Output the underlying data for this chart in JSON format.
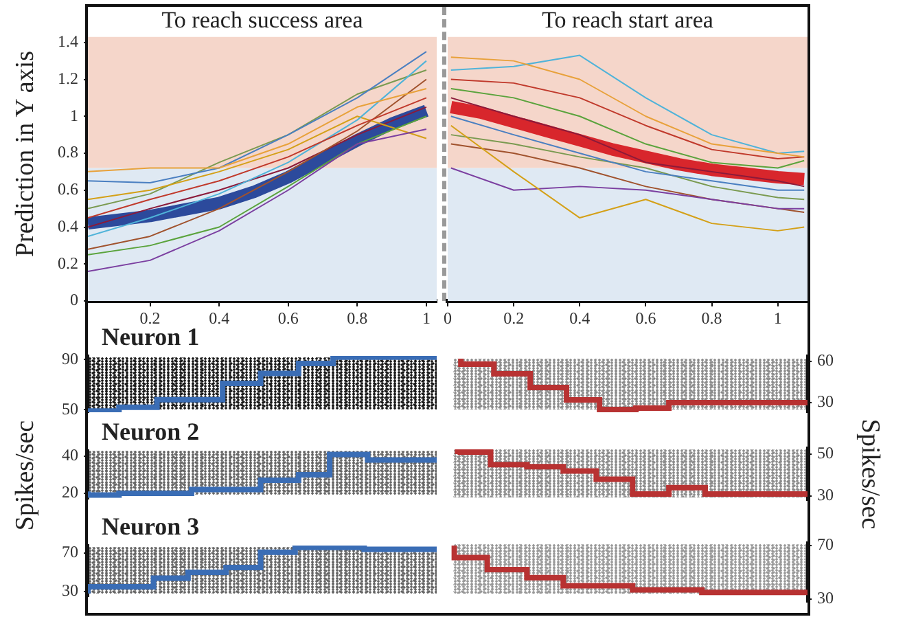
{
  "chart_data": [
    {
      "type": "line",
      "title": "To reach success area",
      "ylabel": "Prediction in Y axis",
      "xlim": [
        0.02,
        1.03
      ],
      "xticks": [
        0.2,
        0.4,
        0.6,
        0.8,
        1
      ],
      "ylim": [
        0,
        1.6
      ],
      "yticks": [
        0,
        0.2,
        0.4,
        0.6,
        0.8,
        1,
        1.2,
        1.4
      ],
      "grid": false,
      "bands": [
        {
          "axis": "y",
          "from": 0,
          "to": 0.72,
          "color": "#dfe9f3"
        },
        {
          "axis": "y",
          "from": 0.72,
          "to": 1.43,
          "color": "#f5d6ca"
        }
      ],
      "x": [
        0.02,
        0.2,
        0.4,
        0.6,
        0.8,
        1.0
      ],
      "series": [
        {
          "color": "#7b3fa0",
          "values": [
            0.16,
            0.22,
            0.38,
            0.6,
            0.85,
            0.93
          ]
        },
        {
          "color": "#e8a13a",
          "values": [
            0.7,
            0.72,
            0.72,
            0.85,
            1.05,
            1.15
          ]
        },
        {
          "color": "#4a7fc1",
          "values": [
            0.65,
            0.64,
            0.72,
            0.9,
            1.1,
            1.35
          ]
        },
        {
          "color": "#5aa33c",
          "values": [
            0.25,
            0.3,
            0.4,
            0.62,
            0.85,
            1.0
          ]
        },
        {
          "color": "#c0392b",
          "values": [
            0.45,
            0.55,
            0.65,
            0.78,
            0.95,
            1.1
          ]
        },
        {
          "color": "#4fb3d9",
          "values": [
            0.35,
            0.45,
            0.58,
            0.75,
            0.98,
            1.3
          ]
        },
        {
          "color": "#d4a017",
          "values": [
            0.55,
            0.6,
            0.7,
            0.82,
            1.0,
            0.88
          ]
        },
        {
          "color": "#a0522d",
          "values": [
            0.28,
            0.35,
            0.5,
            0.7,
            0.92,
            1.2
          ]
        },
        {
          "color": "#7a9a50",
          "values": [
            0.5,
            0.58,
            0.75,
            0.9,
            1.12,
            1.25
          ]
        },
        {
          "color": "#8b1a3a",
          "values": [
            0.4,
            0.5,
            0.6,
            0.72,
            0.9,
            1.05
          ]
        },
        {
          "color": "#2c4a9c",
          "x": [
            0.02,
            0.2,
            0.4,
            0.5,
            0.6,
            0.7,
            0.8,
            0.9,
            1.0
          ],
          "values": [
            0.42,
            0.46,
            0.53,
            0.59,
            0.67,
            0.77,
            0.87,
            0.96,
            1.03
          ]
        }
      ]
    },
    {
      "type": "line",
      "title": "To reach start area",
      "xlim": [
        0,
        1.09
      ],
      "xticks": [
        0,
        0.2,
        0.4,
        0.6,
        0.8,
        1
      ],
      "ylim": [
        0,
        1.6
      ],
      "tick_labels": "x",
      "grid": false,
      "bands": [
        {
          "axis": "y",
          "from": 0,
          "to": 0.72,
          "color": "#dfe9f3"
        },
        {
          "axis": "y",
          "from": 0.72,
          "to": 1.43,
          "color": "#f5d6ca"
        }
      ],
      "x": [
        0.01,
        0.2,
        0.4,
        0.6,
        0.8,
        1.0,
        1.08
      ],
      "series": [
        {
          "color": "#e8a13a",
          "values": [
            1.32,
            1.3,
            1.2,
            1.0,
            0.85,
            0.8,
            0.78
          ]
        },
        {
          "color": "#4fb3d9",
          "values": [
            1.25,
            1.27,
            1.33,
            1.1,
            0.9,
            0.8,
            0.81
          ]
        },
        {
          "color": "#d4a017",
          "values": [
            0.95,
            0.7,
            0.45,
            0.55,
            0.42,
            0.38,
            0.4
          ]
        },
        {
          "color": "#7b3fa0",
          "values": [
            0.72,
            0.6,
            0.62,
            0.6,
            0.55,
            0.5,
            0.5
          ]
        },
        {
          "color": "#5aa33c",
          "values": [
            1.15,
            1.1,
            1.0,
            0.85,
            0.75,
            0.72,
            0.76
          ]
        },
        {
          "color": "#c0392b",
          "values": [
            1.2,
            1.18,
            1.1,
            0.95,
            0.82,
            0.77,
            0.78
          ]
        },
        {
          "color": "#4a7fc1",
          "values": [
            1.0,
            0.9,
            0.8,
            0.7,
            0.65,
            0.6,
            0.6
          ]
        },
        {
          "color": "#a0522d",
          "values": [
            0.85,
            0.8,
            0.72,
            0.62,
            0.55,
            0.5,
            0.48
          ]
        },
        {
          "color": "#8b1a3a",
          "values": [
            1.1,
            1.0,
            0.9,
            0.75,
            0.7,
            0.65,
            0.62
          ]
        },
        {
          "color": "#7a9a50",
          "values": [
            0.9,
            0.85,
            0.78,
            0.72,
            0.62,
            0.56,
            0.55
          ]
        },
        {
          "color": "#d8262c",
          "x": [
            0.01,
            0.1,
            0.2,
            0.3,
            0.4,
            0.5,
            0.6,
            0.7,
            0.8,
            0.9,
            1.0,
            1.08
          ],
          "values": [
            1.05,
            1.02,
            0.97,
            0.92,
            0.87,
            0.82,
            0.78,
            0.74,
            0.71,
            0.69,
            0.67,
            0.66
          ]
        }
      ]
    },
    {
      "type": "step",
      "title": "Neuron 1",
      "xlim": [
        0.02,
        1.03
      ],
      "ylim": [
        48,
        93
      ],
      "yticks": [
        50,
        90
      ],
      "tick_labels": "y",
      "grid": false,
      "x": [
        0.02,
        0.11,
        0.22,
        0.41,
        0.52,
        0.63,
        0.73,
        0.93,
        1.03
      ],
      "series": [
        {
          "color": "#3a6db5",
          "values": [
            50,
            49,
            52,
            58,
            71,
            79,
            87,
            92,
            92
          ]
        }
      ]
    },
    {
      "type": "step",
      "xlim": [
        0,
        1.09
      ],
      "ylim": [
        23,
        64
      ],
      "yticks": [
        30,
        60
      ],
      "tick_labels": "y",
      "grid": false,
      "x": [
        0.04,
        0.14,
        0.25,
        0.36,
        0.46,
        0.57,
        0.67,
        0.77,
        1.09
      ],
      "series": [
        {
          "color": "#b83232",
          "values": [
            62,
            58,
            51,
            41,
            32,
            25,
            26,
            30,
            30
          ]
        }
      ]
    },
    {
      "type": "step",
      "title": "Neuron 2",
      "ylabel": "Spikes/sec",
      "xlim": [
        0.02,
        1.03
      ],
      "ylim": [
        17,
        43
      ],
      "yticks": [
        20,
        40
      ],
      "tick_labels": "y",
      "grid": false,
      "x": [
        0.02,
        0.11,
        0.32,
        0.52,
        0.63,
        0.72,
        0.83,
        0.93,
        1.03
      ],
      "series": [
        {
          "color": "#3a6db5",
          "values": [
            21,
            19,
            20,
            22,
            27,
            30,
            41,
            38,
            38
          ]
        }
      ]
    },
    {
      "type": "step",
      "y2label": "Spikes/sec",
      "xlim": [
        0,
        1.09
      ],
      "ylim": [
        28,
        53
      ],
      "yticks": [
        30,
        50
      ],
      "tick_labels": "y",
      "grid": false,
      "x": [
        0.03,
        0.13,
        0.24,
        0.35,
        0.45,
        0.56,
        0.67,
        0.78,
        0.88,
        1.09
      ],
      "series": [
        {
          "color": "#b83232",
          "values": [
            50,
            51,
            45,
            44,
            42,
            38,
            31,
            34,
            31,
            31
          ]
        }
      ]
    },
    {
      "type": "step",
      "title": "Neuron 3",
      "xlim": [
        0.02,
        1.03
      ],
      "ylim": [
        25,
        78
      ],
      "yticks": [
        30,
        70
      ],
      "tick_labels": "y",
      "grid": false,
      "x": [
        0.02,
        0.21,
        0.31,
        0.42,
        0.52,
        0.62,
        0.82,
        0.93,
        1.03
      ],
      "series": [
        {
          "color": "#3a6db5",
          "values": [
            28,
            35,
            44,
            50,
            55,
            71,
            76,
            74,
            74
          ]
        }
      ]
    },
    {
      "type": "step",
      "xlim": [
        0,
        1.09
      ],
      "ylim": [
        28,
        72
      ],
      "yticks": [
        30,
        70
      ],
      "tick_labels": "y",
      "grid": false,
      "x": [
        0.02,
        0.12,
        0.24,
        0.35,
        0.56,
        0.77,
        0.88,
        1.09
      ],
      "series": [
        {
          "color": "#b83232",
          "values": [
            70,
            61,
            52,
            46,
            40,
            37,
            35,
            35
          ]
        }
      ]
    }
  ]
}
